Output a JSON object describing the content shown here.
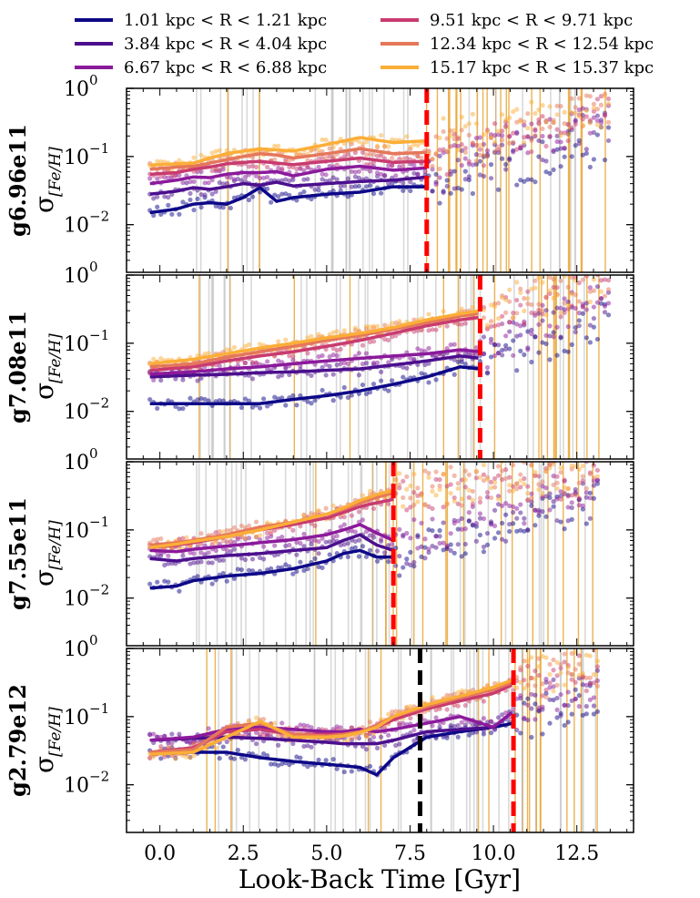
{
  "legend": [
    {
      "label": "1.01 kpc < R < 1.21 kpc",
      "color": "#0d0887"
    },
    {
      "label": "3.84 kpc < R < 4.04 kpc",
      "color": "#4b0f8e"
    },
    {
      "label": "6.67 kpc < R < 6.88 kpc",
      "color": "#8b1a9b"
    },
    {
      "label": "9.51 kpc < R < 9.71 kpc",
      "color": "#c83b6f"
    },
    {
      "label": "12.34 kpc < R < 12.54 kpc",
      "color": "#e5775a"
    },
    {
      "label": "15.17 kpc < R < 15.37 kpc",
      "color": "#fbae37"
    }
  ],
  "chart_data": {
    "type": "line",
    "xlabel": "Look-Back Time [Gyr]",
    "ylabel": "σ",
    "ylabel_sub": "[Fe/H]",
    "xlim": [
      -1.0,
      14.2
    ],
    "x_ticks": [
      "0.0",
      "2.5",
      "5.0",
      "7.5",
      "10.0",
      "12.5"
    ],
    "x_tick_values": [
      0,
      2.5,
      5,
      7.5,
      10,
      12.5
    ],
    "ylim": [
      0.002,
      1.0
    ],
    "y_scale": "log",
    "y_ticks": [
      {
        "value": 1,
        "base": "10",
        "exp": "0"
      },
      {
        "value": 0.1,
        "base": "10",
        "exp": "−1"
      },
      {
        "value": 0.01,
        "base": "10",
        "exp": "−2"
      }
    ],
    "panels": [
      {
        "name": "g6.96e11",
        "red_line": 8.0,
        "black_line": null,
        "curves_end": 8.0,
        "series": [
          {
            "x": [
              -0.3,
              0.5,
              1.0,
              1.5,
              2.0,
              2.5,
              3.0,
              3.5,
              4.0,
              5.0,
              6.0,
              7.0,
              8.0
            ],
            "y": [
              0.015,
              0.017,
              0.02,
              0.021,
              0.02,
              0.025,
              0.035,
              0.022,
              0.025,
              0.028,
              0.03,
              0.036,
              0.036
            ]
          },
          {
            "x": [
              -0.3,
              0.5,
              1.0,
              1.5,
              2.0,
              2.5,
              3.0,
              3.5,
              4.0,
              5.0,
              6.0,
              7.0,
              8.0
            ],
            "y": [
              0.028,
              0.031,
              0.035,
              0.033,
              0.036,
              0.04,
              0.038,
              0.042,
              0.037,
              0.04,
              0.043,
              0.045,
              0.05
            ]
          },
          {
            "x": [
              -0.3,
              0.5,
              1.0,
              1.5,
              2.0,
              2.5,
              3.0,
              3.5,
              4.0,
              5.0,
              6.0,
              7.0,
              8.0
            ],
            "y": [
              0.04,
              0.045,
              0.05,
              0.049,
              0.055,
              0.058,
              0.058,
              0.06,
              0.052,
              0.065,
              0.072,
              0.063,
              0.068
            ]
          },
          {
            "x": [
              -0.3,
              0.5,
              1.0,
              1.5,
              2.0,
              2.5,
              3.0,
              3.5,
              4.0,
              5.0,
              6.0,
              7.0,
              8.0
            ],
            "y": [
              0.055,
              0.058,
              0.065,
              0.07,
              0.078,
              0.082,
              0.085,
              0.08,
              0.076,
              0.085,
              0.095,
              0.082,
              0.085
            ]
          },
          {
            "x": [
              -0.3,
              0.5,
              1.0,
              1.5,
              2.0,
              2.5,
              3.0,
              3.5,
              4.0,
              5.0,
              6.0,
              7.0,
              8.0
            ],
            "y": [
              0.065,
              0.07,
              0.072,
              0.08,
              0.09,
              0.1,
              0.11,
              0.105,
              0.095,
              0.11,
              0.13,
              0.11,
              0.115
            ]
          },
          {
            "x": [
              -0.3,
              0.5,
              1.0,
              1.5,
              2.0,
              2.5,
              3.0,
              3.5,
              4.0,
              5.0,
              6.0,
              7.0,
              8.0
            ],
            "y": [
              0.075,
              0.078,
              0.08,
              0.095,
              0.11,
              0.12,
              0.13,
              0.125,
              0.12,
              0.15,
              0.19,
              0.16,
              0.17
            ]
          }
        ],
        "scatter_extension": {
          "x_start": 8.0,
          "x_end": 13.5,
          "y_start": [
            0.036,
            0.05,
            0.068,
            0.085,
            0.115,
            0.17
          ],
          "y_end": [
            0.15,
            0.3,
            0.4,
            0.45,
            0.5,
            0.55
          ]
        }
      },
      {
        "name": "g7.08e11",
        "red_line": 9.6,
        "black_line": null,
        "curves_end": 9.6,
        "series": [
          {
            "x": [
              -0.3,
              1.0,
              2.0,
              3.0,
              4.0,
              5.0,
              6.0,
              7.0,
              8.0,
              9.0,
              9.6
            ],
            "y": [
              0.013,
              0.013,
              0.013,
              0.013,
              0.015,
              0.017,
              0.02,
              0.025,
              0.032,
              0.045,
              0.042
            ]
          },
          {
            "x": [
              -0.3,
              1.0,
              2.0,
              3.0,
              4.0,
              5.0,
              6.0,
              7.0,
              8.0,
              9.0,
              9.6
            ],
            "y": [
              0.032,
              0.034,
              0.035,
              0.037,
              0.038,
              0.04,
              0.042,
              0.048,
              0.055,
              0.065,
              0.06
            ]
          },
          {
            "x": [
              -0.3,
              1.0,
              2.0,
              3.0,
              4.0,
              5.0,
              6.0,
              7.0,
              8.0,
              9.0,
              9.6
            ],
            "y": [
              0.035,
              0.038,
              0.042,
              0.045,
              0.05,
              0.055,
              0.06,
              0.065,
              0.07,
              0.08,
              0.075
            ]
          },
          {
            "x": [
              -0.3,
              1.0,
              2.0,
              3.0,
              4.0,
              5.0,
              6.0,
              7.0,
              8.0,
              9.0,
              9.6
            ],
            "y": [
              0.04,
              0.045,
              0.055,
              0.065,
              0.075,
              0.09,
              0.11,
              0.14,
              0.18,
              0.22,
              0.24
            ]
          },
          {
            "x": [
              -0.3,
              1.0,
              2.0,
              3.0,
              4.0,
              5.0,
              6.0,
              7.0,
              8.0,
              9.0,
              9.6
            ],
            "y": [
              0.045,
              0.05,
              0.062,
              0.075,
              0.09,
              0.11,
              0.13,
              0.16,
              0.2,
              0.25,
              0.28
            ]
          },
          {
            "x": [
              -0.3,
              1.0,
              2.0,
              3.0,
              4.0,
              5.0,
              6.0,
              7.0,
              8.0,
              9.0,
              9.6
            ],
            "y": [
              0.05,
              0.058,
              0.07,
              0.085,
              0.1,
              0.12,
              0.14,
              0.17,
              0.22,
              0.27,
              0.3
            ]
          }
        ],
        "scatter_extension": {
          "x_start": 9.6,
          "x_end": 13.5,
          "y_start": [
            0.042,
            0.06,
            0.075,
            0.24,
            0.28,
            0.3
          ],
          "y_end": [
            0.25,
            0.5,
            0.6,
            0.7,
            0.8,
            0.8
          ]
        }
      },
      {
        "name": "g7.55e11",
        "red_line": 7.0,
        "black_line": null,
        "curves_end": 7.0,
        "series": [
          {
            "x": [
              -0.3,
              0.5,
              1.0,
              2.0,
              3.0,
              4.0,
              5.0,
              5.5,
              6.0,
              6.5,
              7.0
            ],
            "y": [
              0.014,
              0.015,
              0.018,
              0.021,
              0.023,
              0.027,
              0.035,
              0.045,
              0.05,
              0.04,
              0.04
            ]
          },
          {
            "x": [
              -0.3,
              0.5,
              1.0,
              2.0,
              3.0,
              4.0,
              5.0,
              5.5,
              6.0,
              6.5,
              7.0
            ],
            "y": [
              0.038,
              0.035,
              0.038,
              0.042,
              0.045,
              0.05,
              0.055,
              0.07,
              0.085,
              0.06,
              0.05
            ]
          },
          {
            "x": [
              -0.3,
              0.5,
              1.0,
              2.0,
              3.0,
              4.0,
              5.0,
              5.5,
              6.0,
              6.5,
              7.0
            ],
            "y": [
              0.05,
              0.048,
              0.052,
              0.058,
              0.065,
              0.072,
              0.085,
              0.1,
              0.12,
              0.09,
              0.07
            ]
          },
          {
            "x": [
              -0.3,
              0.5,
              1.0,
              2.0,
              3.0,
              4.0,
              5.0,
              5.5,
              6.0,
              6.5,
              7.0
            ],
            "y": [
              0.055,
              0.06,
              0.065,
              0.08,
              0.1,
              0.12,
              0.15,
              0.18,
              0.22,
              0.25,
              0.28
            ]
          },
          {
            "x": [
              -0.3,
              0.5,
              1.0,
              2.0,
              3.0,
              4.0,
              5.0,
              5.5,
              6.0,
              6.5,
              7.0
            ],
            "y": [
              0.06,
              0.065,
              0.07,
              0.085,
              0.11,
              0.13,
              0.17,
              0.2,
              0.25,
              0.3,
              0.35
            ]
          },
          {
            "x": [
              -0.3,
              0.5,
              1.0,
              2.0,
              3.0,
              4.0,
              5.0,
              5.5,
              6.0,
              6.5,
              7.0
            ],
            "y": [
              0.055,
              0.062,
              0.068,
              0.08,
              0.1,
              0.13,
              0.17,
              0.21,
              0.27,
              0.33,
              0.38
            ]
          }
        ],
        "scatter_extension": {
          "x_start": 7.0,
          "x_end": 13.2,
          "y_start": [
            0.04,
            0.05,
            0.07,
            0.28,
            0.35,
            0.38
          ],
          "y_end": [
            0.25,
            0.3,
            0.5,
            0.6,
            0.7,
            0.8
          ]
        }
      },
      {
        "name": "g2.79e12",
        "red_line": 10.6,
        "black_line": 7.8,
        "curves_end": 10.6,
        "series": [
          {
            "x": [
              -0.3,
              1.0,
              2.0,
              3.0,
              4.0,
              5.0,
              5.5,
              6.0,
              6.5,
              7.0,
              8.0,
              9.0,
              10.0,
              10.6
            ],
            "y": [
              0.028,
              0.03,
              0.03,
              0.025,
              0.022,
              0.02,
              0.019,
              0.018,
              0.014,
              0.025,
              0.05,
              0.06,
              0.07,
              0.08
            ]
          },
          {
            "x": [
              -0.3,
              1.0,
              2.0,
              3.0,
              4.0,
              5.0,
              5.5,
              6.0,
              6.5,
              7.0,
              8.0,
              9.0,
              10.0,
              10.6
            ],
            "y": [
              0.045,
              0.048,
              0.05,
              0.048,
              0.045,
              0.042,
              0.04,
              0.04,
              0.04,
              0.045,
              0.06,
              0.065,
              0.07,
              0.12
            ]
          },
          {
            "x": [
              -0.3,
              1.0,
              2.0,
              3.0,
              4.0,
              5.0,
              5.5,
              6.0,
              6.5,
              7.0,
              8.0,
              9.0,
              10.0,
              10.6
            ],
            "y": [
              0.045,
              0.05,
              0.065,
              0.07,
              0.065,
              0.06,
              0.06,
              0.065,
              0.06,
              0.065,
              0.08,
              0.1,
              0.07,
              0.12
            ]
          },
          {
            "x": [
              -0.3,
              1.0,
              2.0,
              3.0,
              4.0,
              5.0,
              5.5,
              6.0,
              6.5,
              7.0,
              8.0,
              9.0,
              10.0,
              10.6
            ],
            "y": [
              0.03,
              0.035,
              0.06,
              0.065,
              0.055,
              0.055,
              0.055,
              0.06,
              0.07,
              0.09,
              0.13,
              0.17,
              0.22,
              0.3
            ]
          },
          {
            "x": [
              -0.3,
              1.0,
              2.0,
              3.0,
              4.0,
              5.0,
              5.5,
              6.0,
              6.5,
              7.0,
              8.0,
              9.0,
              10.0,
              10.6
            ],
            "y": [
              0.03,
              0.033,
              0.07,
              0.08,
              0.055,
              0.052,
              0.055,
              0.06,
              0.075,
              0.1,
              0.14,
              0.19,
              0.25,
              0.32
            ]
          },
          {
            "x": [
              -0.3,
              1.0,
              2.0,
              3.0,
              4.0,
              5.0,
              5.5,
              6.0,
              6.5,
              7.0,
              8.0,
              9.0,
              10.0,
              10.6
            ],
            "y": [
              0.028,
              0.03,
              0.05,
              0.085,
              0.05,
              0.05,
              0.052,
              0.058,
              0.07,
              0.1,
              0.15,
              0.2,
              0.27,
              0.35
            ]
          }
        ],
        "scatter_extension": {
          "x_start": 10.6,
          "x_end": 13.2,
          "y_start": [
            0.08,
            0.12,
            0.12,
            0.3,
            0.32,
            0.35
          ],
          "y_end": [
            0.2,
            0.3,
            0.35,
            0.5,
            0.5,
            0.5
          ]
        }
      }
    ]
  }
}
